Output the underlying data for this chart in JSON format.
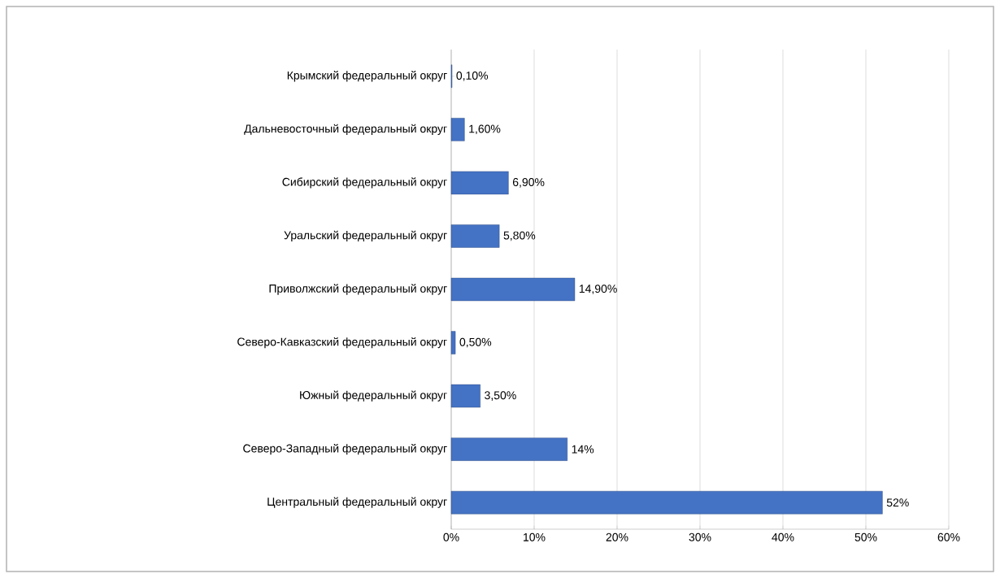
{
  "chart_data": {
    "type": "bar",
    "orientation": "horizontal",
    "categories": [
      "Крымский федеральный округ",
      "Дальневосточный федеральный округ",
      "Сибирский федеральный округ",
      "Уральский федеральный округ",
      "Приволжский федеральный округ",
      "Северо-Кавказский федеральный округ",
      "Южный федеральный округ",
      "Северо-Западный федеральный округ",
      "Центральный федеральный округ"
    ],
    "values": [
      0.1,
      1.6,
      6.9,
      5.8,
      14.9,
      0.5,
      3.5,
      14,
      52
    ],
    "value_labels": [
      "0,10%",
      "1,60%",
      "6,90%",
      "5,80%",
      "14,90%",
      "0,50%",
      "3,50%",
      "14%",
      "52%"
    ],
    "color": "#4472c4",
    "xlim": [
      0,
      60
    ],
    "xticks": [
      {
        "value": 0,
        "label": "0%"
      },
      {
        "value": 10,
        "label": "10%"
      },
      {
        "value": 20,
        "label": "20%"
      },
      {
        "value": 30,
        "label": "30%"
      },
      {
        "value": 40,
        "label": "40%"
      },
      {
        "value": 50,
        "label": "50%"
      },
      {
        "value": 60,
        "label": "60%"
      }
    ],
    "grid": "x"
  }
}
